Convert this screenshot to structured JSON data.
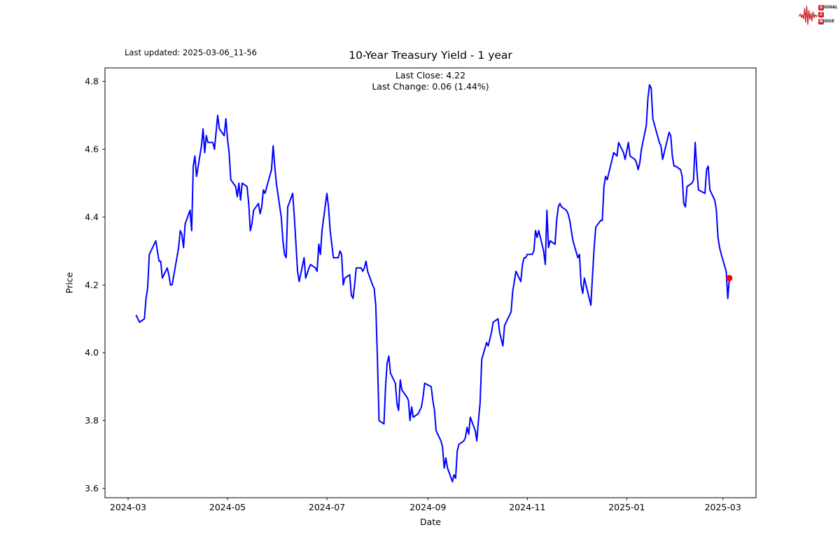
{
  "header": {
    "last_updated": "Last updated: 2025-03-06_11-56",
    "title": "10-Year Treasury Yield - 1 year",
    "subtitle_line1": "Last Close: 4.22",
    "subtitle_line2": "Last Change: 0.06 (1.44%)"
  },
  "logo": {
    "accent_color": "#cc1f2d",
    "row1_boxed": "S",
    "row1_rest": "IGNAL",
    "row2_boxed": "2",
    "row2_rest": "",
    "row3_boxed": "N",
    "row3_rest": "OISE"
  },
  "chart_data": {
    "type": "line",
    "title": "10-Year Treasury Yield - 1 year",
    "xlabel": "Date",
    "ylabel": "Price",
    "grid": false,
    "legend": "none",
    "line_color": "#0000ff",
    "last_point_color": "#ff0000",
    "last_close": 4.22,
    "last_change": 0.06,
    "last_change_pct": "1.44%",
    "y_ticks": [
      3.6,
      3.8,
      4.0,
      4.2,
      4.4,
      4.6,
      4.8
    ],
    "ylim": [
      3.57,
      4.84
    ],
    "x_ticks": [
      {
        "label": "2024-03",
        "date": "2024-03-01"
      },
      {
        "label": "2024-05",
        "date": "2024-05-01"
      },
      {
        "label": "2024-07",
        "date": "2024-07-01"
      },
      {
        "label": "2024-09",
        "date": "2024-09-01"
      },
      {
        "label": "2024-11",
        "date": "2024-11-01"
      },
      {
        "label": "2025-01",
        "date": "2025-01-01"
      },
      {
        "label": "2025-03",
        "date": "2025-03-01"
      }
    ],
    "series": [
      {
        "name": "10-Year Treasury Yield",
        "points": [
          [
            "2024-03-06",
            4.11
          ],
          [
            "2024-03-08",
            4.09
          ],
          [
            "2024-03-11",
            4.1
          ],
          [
            "2024-03-12",
            4.16
          ],
          [
            "2024-03-13",
            4.19
          ],
          [
            "2024-03-14",
            4.29
          ],
          [
            "2024-03-18",
            4.33
          ],
          [
            "2024-03-19",
            4.3
          ],
          [
            "2024-03-20",
            4.27
          ],
          [
            "2024-03-21",
            4.27
          ],
          [
            "2024-03-22",
            4.22
          ],
          [
            "2024-03-25",
            4.25
          ],
          [
            "2024-03-26",
            4.23
          ],
          [
            "2024-03-27",
            4.2
          ],
          [
            "2024-03-28",
            4.2
          ],
          [
            "2024-04-01",
            4.31
          ],
          [
            "2024-04-02",
            4.36
          ],
          [
            "2024-04-03",
            4.35
          ],
          [
            "2024-04-04",
            4.31
          ],
          [
            "2024-04-05",
            4.38
          ],
          [
            "2024-04-08",
            4.42
          ],
          [
            "2024-04-09",
            4.36
          ],
          [
            "2024-04-10",
            4.55
          ],
          [
            "2024-04-11",
            4.58
          ],
          [
            "2024-04-12",
            4.52
          ],
          [
            "2024-04-15",
            4.61
          ],
          [
            "2024-04-16",
            4.66
          ],
          [
            "2024-04-17",
            4.59
          ],
          [
            "2024-04-18",
            4.64
          ],
          [
            "2024-04-19",
            4.62
          ],
          [
            "2024-04-22",
            4.62
          ],
          [
            "2024-04-23",
            4.6
          ],
          [
            "2024-04-24",
            4.65
          ],
          [
            "2024-04-25",
            4.7
          ],
          [
            "2024-04-26",
            4.66
          ],
          [
            "2024-04-29",
            4.64
          ],
          [
            "2024-04-30",
            4.69
          ],
          [
            "2024-05-01",
            4.63
          ],
          [
            "2024-05-02",
            4.59
          ],
          [
            "2024-05-03",
            4.51
          ],
          [
            "2024-05-06",
            4.49
          ],
          [
            "2024-05-07",
            4.46
          ],
          [
            "2024-05-08",
            4.5
          ],
          [
            "2024-05-09",
            4.45
          ],
          [
            "2024-05-10",
            4.5
          ],
          [
            "2024-05-13",
            4.49
          ],
          [
            "2024-05-14",
            4.44
          ],
          [
            "2024-05-15",
            4.36
          ],
          [
            "2024-05-16",
            4.38
          ],
          [
            "2024-05-17",
            4.42
          ],
          [
            "2024-05-20",
            4.44
          ],
          [
            "2024-05-21",
            4.41
          ],
          [
            "2024-05-22",
            4.43
          ],
          [
            "2024-05-23",
            4.48
          ],
          [
            "2024-05-24",
            4.47
          ],
          [
            "2024-05-28",
            4.54
          ],
          [
            "2024-05-29",
            4.61
          ],
          [
            "2024-05-30",
            4.55
          ],
          [
            "2024-05-31",
            4.5
          ],
          [
            "2024-06-03",
            4.4
          ],
          [
            "2024-06-04",
            4.33
          ],
          [
            "2024-06-05",
            4.29
          ],
          [
            "2024-06-06",
            4.28
          ],
          [
            "2024-06-07",
            4.43
          ],
          [
            "2024-06-10",
            4.47
          ],
          [
            "2024-06-11",
            4.4
          ],
          [
            "2024-06-12",
            4.32
          ],
          [
            "2024-06-13",
            4.24
          ],
          [
            "2024-06-14",
            4.21
          ],
          [
            "2024-06-17",
            4.28
          ],
          [
            "2024-06-18",
            4.22
          ],
          [
            "2024-06-20",
            4.25
          ],
          [
            "2024-06-21",
            4.26
          ],
          [
            "2024-06-24",
            4.25
          ],
          [
            "2024-06-25",
            4.24
          ],
          [
            "2024-06-26",
            4.32
          ],
          [
            "2024-06-27",
            4.29
          ],
          [
            "2024-06-28",
            4.36
          ],
          [
            "2024-07-01",
            4.47
          ],
          [
            "2024-07-02",
            4.43
          ],
          [
            "2024-07-03",
            4.36
          ],
          [
            "2024-07-05",
            4.28
          ],
          [
            "2024-07-08",
            4.28
          ],
          [
            "2024-07-09",
            4.3
          ],
          [
            "2024-07-10",
            4.29
          ],
          [
            "2024-07-11",
            4.2
          ],
          [
            "2024-07-12",
            4.22
          ],
          [
            "2024-07-15",
            4.23
          ],
          [
            "2024-07-16",
            4.17
          ],
          [
            "2024-07-17",
            4.16
          ],
          [
            "2024-07-18",
            4.2
          ],
          [
            "2024-07-19",
            4.25
          ],
          [
            "2024-07-22",
            4.25
          ],
          [
            "2024-07-23",
            4.24
          ],
          [
            "2024-07-24",
            4.25
          ],
          [
            "2024-07-25",
            4.27
          ],
          [
            "2024-07-26",
            4.24
          ],
          [
            "2024-07-29",
            4.2
          ],
          [
            "2024-07-30",
            4.19
          ],
          [
            "2024-07-31",
            4.14
          ],
          [
            "2024-08-01",
            3.98
          ],
          [
            "2024-08-02",
            3.8
          ],
          [
            "2024-08-05",
            3.79
          ],
          [
            "2024-08-06",
            3.9
          ],
          [
            "2024-08-07",
            3.97
          ],
          [
            "2024-08-08",
            3.99
          ],
          [
            "2024-08-09",
            3.94
          ],
          [
            "2024-08-12",
            3.91
          ],
          [
            "2024-08-13",
            3.85
          ],
          [
            "2024-08-14",
            3.83
          ],
          [
            "2024-08-15",
            3.92
          ],
          [
            "2024-08-16",
            3.89
          ],
          [
            "2024-08-19",
            3.87
          ],
          [
            "2024-08-20",
            3.86
          ],
          [
            "2024-08-21",
            3.8
          ],
          [
            "2024-08-22",
            3.84
          ],
          [
            "2024-08-23",
            3.81
          ],
          [
            "2024-08-26",
            3.82
          ],
          [
            "2024-08-27",
            3.83
          ],
          [
            "2024-08-28",
            3.84
          ],
          [
            "2024-08-29",
            3.87
          ],
          [
            "2024-08-30",
            3.91
          ],
          [
            "2024-09-03",
            3.9
          ],
          [
            "2024-09-04",
            3.86
          ],
          [
            "2024-09-05",
            3.83
          ],
          [
            "2024-09-06",
            3.77
          ],
          [
            "2024-09-09",
            3.74
          ],
          [
            "2024-09-10",
            3.72
          ],
          [
            "2024-09-11",
            3.66
          ],
          [
            "2024-09-12",
            3.69
          ],
          [
            "2024-09-13",
            3.66
          ],
          [
            "2024-09-16",
            3.62
          ],
          [
            "2024-09-17",
            3.64
          ],
          [
            "2024-09-18",
            3.63
          ],
          [
            "2024-09-19",
            3.71
          ],
          [
            "2024-09-20",
            3.73
          ],
          [
            "2024-09-23",
            3.74
          ],
          [
            "2024-09-24",
            3.75
          ],
          [
            "2024-09-25",
            3.78
          ],
          [
            "2024-09-26",
            3.76
          ],
          [
            "2024-09-27",
            3.81
          ],
          [
            "2024-09-30",
            3.77
          ],
          [
            "2024-10-01",
            3.74
          ],
          [
            "2024-10-02",
            3.8
          ],
          [
            "2024-10-03",
            3.85
          ],
          [
            "2024-10-04",
            3.98
          ],
          [
            "2024-10-07",
            4.03
          ],
          [
            "2024-10-08",
            4.02
          ],
          [
            "2024-10-09",
            4.04
          ],
          [
            "2024-10-10",
            4.06
          ],
          [
            "2024-10-11",
            4.09
          ],
          [
            "2024-10-14",
            4.1
          ],
          [
            "2024-10-15",
            4.06
          ],
          [
            "2024-10-16",
            4.04
          ],
          [
            "2024-10-17",
            4.02
          ],
          [
            "2024-10-18",
            4.08
          ],
          [
            "2024-10-21",
            4.11
          ],
          [
            "2024-10-22",
            4.12
          ],
          [
            "2024-10-23",
            4.18
          ],
          [
            "2024-10-24",
            4.21
          ],
          [
            "2024-10-25",
            4.24
          ],
          [
            "2024-10-28",
            4.21
          ],
          [
            "2024-10-29",
            4.26
          ],
          [
            "2024-10-30",
            4.28
          ],
          [
            "2024-10-31",
            4.28
          ],
          [
            "2024-11-01",
            4.29
          ],
          [
            "2024-11-04",
            4.29
          ],
          [
            "2024-11-05",
            4.3
          ],
          [
            "2024-11-06",
            4.36
          ],
          [
            "2024-11-07",
            4.34
          ],
          [
            "2024-11-08",
            4.36
          ],
          [
            "2024-11-11",
            4.3
          ],
          [
            "2024-11-12",
            4.26
          ],
          [
            "2024-11-13",
            4.42
          ],
          [
            "2024-11-14",
            4.31
          ],
          [
            "2024-11-15",
            4.33
          ],
          [
            "2024-11-18",
            4.32
          ],
          [
            "2024-11-19",
            4.39
          ],
          [
            "2024-11-20",
            4.43
          ],
          [
            "2024-11-21",
            4.44
          ],
          [
            "2024-11-22",
            4.43
          ],
          [
            "2024-11-25",
            4.42
          ],
          [
            "2024-11-26",
            4.41
          ],
          [
            "2024-11-27",
            4.39
          ],
          [
            "2024-11-29",
            4.33
          ],
          [
            "2024-12-02",
            4.28
          ],
          [
            "2024-12-03",
            4.29
          ],
          [
            "2024-12-04",
            4.2
          ],
          [
            "2024-12-05",
            4.175
          ],
          [
            "2024-12-06",
            4.22
          ],
          [
            "2024-12-09",
            4.16
          ],
          [
            "2024-12-10",
            4.14
          ],
          [
            "2024-12-11",
            4.23
          ],
          [
            "2024-12-12",
            4.31
          ],
          [
            "2024-12-13",
            4.37
          ],
          [
            "2024-12-16",
            4.39
          ],
          [
            "2024-12-17",
            4.39
          ],
          [
            "2024-12-18",
            4.49
          ],
          [
            "2024-12-19",
            4.52
          ],
          [
            "2024-12-20",
            4.51
          ],
          [
            "2024-12-23",
            4.57
          ],
          [
            "2024-12-24",
            4.59
          ],
          [
            "2024-12-26",
            4.58
          ],
          [
            "2024-12-27",
            4.62
          ],
          [
            "2024-12-30",
            4.59
          ],
          [
            "2024-12-31",
            4.57
          ],
          [
            "2025-01-02",
            4.62
          ],
          [
            "2025-01-03",
            4.58
          ],
          [
            "2025-01-06",
            4.57
          ],
          [
            "2025-01-07",
            4.56
          ],
          [
            "2025-01-08",
            4.54
          ],
          [
            "2025-01-09",
            4.56
          ],
          [
            "2025-01-10",
            4.6
          ],
          [
            "2025-01-13",
            4.67
          ],
          [
            "2025-01-14",
            4.75
          ],
          [
            "2025-01-15",
            4.79
          ],
          [
            "2025-01-16",
            4.78
          ],
          [
            "2025-01-17",
            4.69
          ],
          [
            "2025-01-21",
            4.62
          ],
          [
            "2025-01-22",
            4.61
          ],
          [
            "2025-01-23",
            4.57
          ],
          [
            "2025-01-24",
            4.59
          ],
          [
            "2025-01-27",
            4.65
          ],
          [
            "2025-01-28",
            4.64
          ],
          [
            "2025-01-29",
            4.58
          ],
          [
            "2025-01-30",
            4.55
          ],
          [
            "2025-01-31",
            4.55
          ],
          [
            "2025-02-03",
            4.54
          ],
          [
            "2025-02-04",
            4.52
          ],
          [
            "2025-02-05",
            4.44
          ],
          [
            "2025-02-06",
            4.43
          ],
          [
            "2025-02-07",
            4.49
          ],
          [
            "2025-02-10",
            4.5
          ],
          [
            "2025-02-11",
            4.51
          ],
          [
            "2025-02-12",
            4.62
          ],
          [
            "2025-02-13",
            4.54
          ],
          [
            "2025-02-14",
            4.48
          ],
          [
            "2025-02-18",
            4.47
          ],
          [
            "2025-02-19",
            4.54
          ],
          [
            "2025-02-20",
            4.55
          ],
          [
            "2025-02-21",
            4.48
          ],
          [
            "2025-02-24",
            4.45
          ],
          [
            "2025-02-25",
            4.42
          ],
          [
            "2025-02-26",
            4.34
          ],
          [
            "2025-02-27",
            4.31
          ],
          [
            "2025-02-28",
            4.29
          ],
          [
            "2025-03-03",
            4.24
          ],
          [
            "2025-03-04",
            4.16
          ],
          [
            "2025-03-05",
            4.22
          ]
        ]
      }
    ]
  }
}
